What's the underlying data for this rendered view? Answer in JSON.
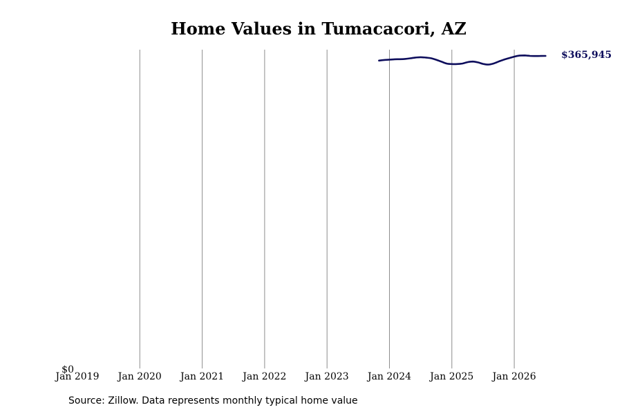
{
  "chart_data": {
    "type": "line",
    "title": "Home Values in Tumacacori, AZ",
    "xlabel": "",
    "ylabel": "",
    "x_ticks": [
      "Jan 2019",
      "Jan 2020",
      "Jan 2021",
      "Jan 2022",
      "Jan 2023",
      "Jan 2024",
      "Jan 2025",
      "Jan 2026"
    ],
    "y_ticks": [
      "$0"
    ],
    "ylim": [
      0,
      370000
    ],
    "xlim": [
      "2019-01",
      "2026-12"
    ],
    "grid": "vertical",
    "end_label": "$365,945",
    "line_color": "#0d0d5c",
    "series": [
      {
        "x": [
          "2023-11",
          "2023-12",
          "2024-01",
          "2024-02",
          "2024-03",
          "2024-04",
          "2024-05",
          "2024-06",
          "2024-07",
          "2024-08",
          "2024-09",
          "2024-10",
          "2024-11",
          "2024-12",
          "2025-01",
          "2025-02",
          "2025-03",
          "2025-04",
          "2025-05",
          "2025-06",
          "2025-07",
          "2025-08",
          "2025-09",
          "2025-10",
          "2025-11",
          "2025-12",
          "2026-01",
          "2026-02",
          "2026-03",
          "2026-04",
          "2026-05",
          "2026-06",
          "2026-07"
        ],
        "values": [
          360500,
          361200,
          361600,
          362000,
          362100,
          362400,
          363100,
          364000,
          364400,
          364000,
          363200,
          361400,
          359200,
          357000,
          356400,
          356400,
          357000,
          358600,
          359300,
          358400,
          356600,
          355800,
          357000,
          359300,
          361500,
          363300,
          365100,
          366300,
          366500,
          366000,
          365800,
          365900,
          365945
        ]
      }
    ]
  },
  "source_text": "Source: Zillow. Data represents monthly typical home value"
}
